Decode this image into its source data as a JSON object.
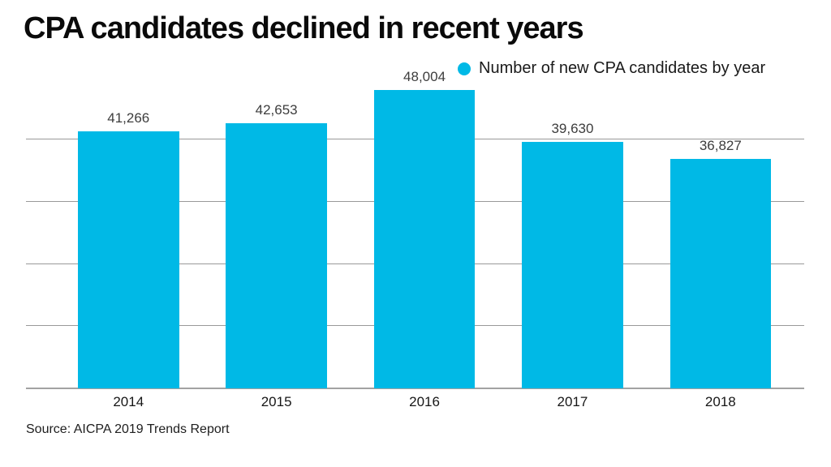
{
  "title": "CPA candidates declined in recent years",
  "legend": {
    "label": "Number of new CPA candidates by year"
  },
  "source": "Source: AICPA 2019 Trends Report",
  "colors": {
    "bar": "#00b9e6",
    "gridline": "#999999",
    "axis_line": "#a2a2a2",
    "title": "#0a0a0a",
    "value_label": "#3d3d3d",
    "background": "#ffffff"
  },
  "chart_data": {
    "type": "bar",
    "title": "CPA candidates declined in recent years",
    "categories": [
      "2014",
      "2015",
      "2016",
      "2017",
      "2018"
    ],
    "values": [
      41266,
      42653,
      48004,
      39630,
      36827
    ],
    "value_labels": [
      "41,266",
      "42,653",
      "48,004",
      "39,630",
      "36,827"
    ],
    "series_name": "Number of new CPA candidates by year",
    "xlabel": "",
    "ylabel": "",
    "ylim": [
      0,
      50000
    ],
    "gridline_interval": 10000,
    "grid": true,
    "y_axis_labels_visible": false,
    "legend_position": "top-right",
    "bar_color": "#00b9e6",
    "source": "Source: AICPA 2019 Trends Report"
  }
}
